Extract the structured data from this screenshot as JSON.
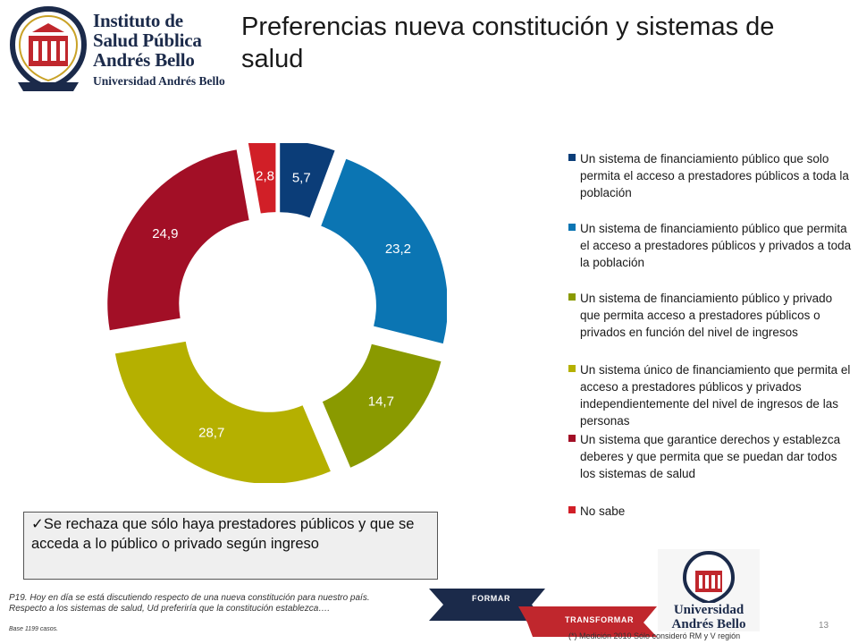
{
  "header": {
    "logo": {
      "lines": [
        "Instituto de",
        "Salud Pública",
        "Andrés Bello"
      ],
      "subline": "Universidad Andrés Bello"
    },
    "title": "Preferencias nueva constitución y sistemas de salud"
  },
  "chart_data": {
    "type": "pie",
    "variant": "donut-exploded",
    "title": "",
    "legend_position": "right",
    "values": [
      5.7,
      23.2,
      14.7,
      28.7,
      24.9,
      2.8
    ],
    "value_labels": [
      "5,7",
      "23,2",
      "14,7",
      "28,7",
      "24,9",
      "2,8"
    ],
    "categories": [
      "Un sistema de financiamiento  público que solo permita el acceso a prestadores públicos a toda la población",
      "Un sistema de financiamiento  público que permita el acceso a prestadores públicos y privados a toda la población",
      "Un sistema de financiamiento público y privado que permita acceso a prestadores públicos o privados en función del nivel de ingresos",
      "Un sistema único de financiamiento que permita el acceso a prestadores públicos y privados independientemente del nivel de ingresos de las personas",
      "Un sistema que garantice derechos y establezca deberes y que permita que se puedan dar todos los sistemas de salud",
      "No sabe"
    ],
    "colors": [
      "#0b3d78",
      "#0b75b3",
      "#8a9a00",
      "#b5b000",
      "#a20f26",
      "#d11f27"
    ]
  },
  "callout": {
    "text": "✓Se rechaza que sólo haya prestadores públicos y que se acceda a lo público o privado según ingreso"
  },
  "footer": {
    "question": "P19. Hoy en día se está discutiendo respecto de una nueva constitución para nuestro país. Respecto a los sistemas de salud, Ud preferiría que la constitución establezca….",
    "base": "Base 1199 casos.",
    "ribbons": [
      "FORMAR",
      "TRANSFORMAR"
    ],
    "university_logo": [
      "Universidad",
      "Andrés Bello"
    ],
    "note": "(*) Medición 2010 Sólo consideró RM y V región",
    "page_number": "13"
  }
}
